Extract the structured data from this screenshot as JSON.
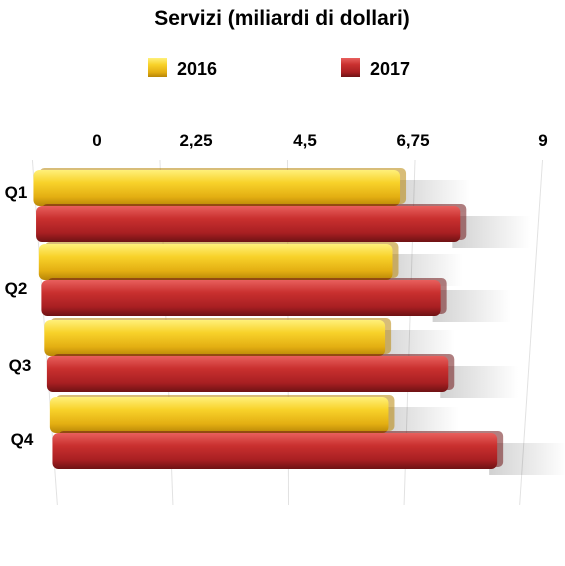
{
  "chart_data": {
    "type": "bar",
    "orientation": "horizontal",
    "title": "Servizi (miliardi di dollari)",
    "categories": [
      "Q1",
      "Q2",
      "Q3",
      "Q4"
    ],
    "series": [
      {
        "name": "2016",
        "color": "#f2c21c",
        "values": [
          6.5,
          6.4,
          6.3,
          6.4
        ]
      },
      {
        "name": "2017",
        "color": "#c0282b",
        "values": [
          7.6,
          7.3,
          7.5,
          8.5
        ]
      }
    ],
    "x_ticks": [
      "0",
      "2,25",
      "4,5",
      "6,75",
      "9"
    ],
    "xlim": [
      0,
      9
    ],
    "legend_position": "top",
    "grid": true
  }
}
